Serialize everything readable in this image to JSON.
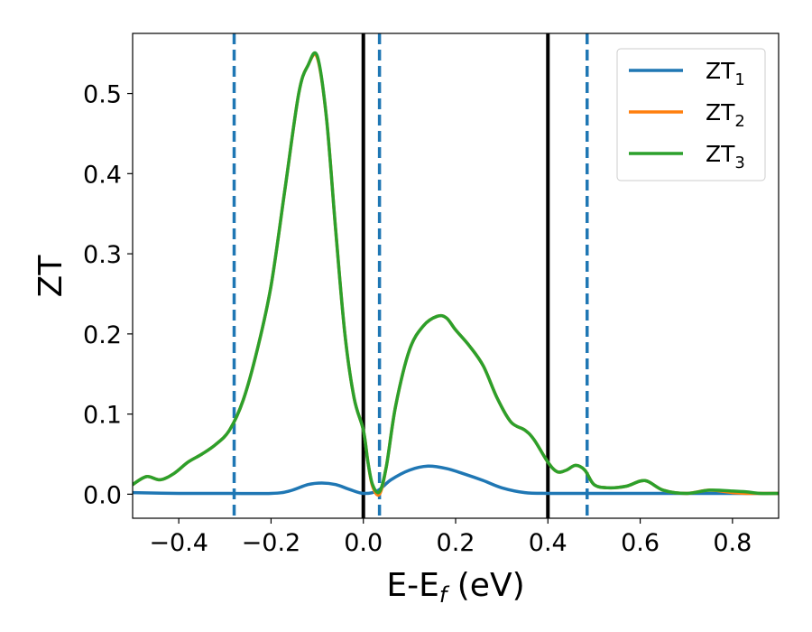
{
  "chart_data": {
    "type": "line",
    "xlabel": "E-E",
    "xlabel_sub": "f",
    "xlabel_unit": " (eV)",
    "ylabel": "ZT",
    "xlim": [
      -0.5,
      0.9
    ],
    "ylim": [
      -0.03,
      0.575
    ],
    "x_ticks": [
      -0.4,
      -0.2,
      0.0,
      0.2,
      0.4,
      0.6,
      0.8
    ],
    "x_tick_labels": [
      "−0.4",
      "−0.2",
      "0.0",
      "0.2",
      "0.4",
      "0.6",
      "0.8"
    ],
    "y_ticks": [
      0.0,
      0.1,
      0.2,
      0.3,
      0.4,
      0.5
    ],
    "y_tick_labels": [
      "0.0",
      "0.1",
      "0.2",
      "0.3",
      "0.4",
      "0.5"
    ],
    "grid": false,
    "legend_position": "top-right",
    "series": [
      {
        "name": "ZT",
        "name_sub": "1",
        "color": "#1f77b4",
        "x": [
          -0.5,
          -0.4,
          -0.3,
          -0.2,
          -0.16,
          -0.12,
          -0.09,
          -0.06,
          -0.03,
          0.0,
          0.03,
          0.06,
          0.1,
          0.14,
          0.18,
          0.22,
          0.26,
          0.3,
          0.35,
          0.4,
          0.45,
          0.5,
          0.55,
          0.6,
          0.7,
          0.8,
          0.9
        ],
        "y": [
          0.002,
          0.001,
          0.001,
          0.001,
          0.004,
          0.012,
          0.014,
          0.012,
          0.006,
          0.001,
          0.004,
          0.018,
          0.03,
          0.035,
          0.032,
          0.025,
          0.017,
          0.008,
          0.002,
          0.001,
          0.001,
          0.001,
          0.001,
          0.001,
          0.001,
          0.001,
          0.001
        ]
      },
      {
        "name": "ZT",
        "name_sub": "2",
        "color": "#ff7f0e",
        "x": [
          -0.5,
          -0.47,
          -0.44,
          -0.41,
          -0.38,
          -0.35,
          -0.32,
          -0.29,
          -0.26,
          -0.23,
          -0.2,
          -0.17,
          -0.14,
          -0.12,
          -0.1,
          -0.08,
          -0.06,
          -0.04,
          -0.02,
          0.0,
          0.01,
          0.02,
          0.035,
          0.05,
          0.07,
          0.1,
          0.13,
          0.16,
          0.18,
          0.2,
          0.23,
          0.26,
          0.29,
          0.32,
          0.35,
          0.37,
          0.4,
          0.42,
          0.44,
          0.46,
          0.48,
          0.5,
          0.53,
          0.57,
          0.61,
          0.65,
          0.7,
          0.75,
          0.8,
          0.83,
          0.86,
          0.9
        ],
        "y": [
          0.012,
          0.022,
          0.018,
          0.026,
          0.04,
          0.05,
          0.062,
          0.08,
          0.118,
          0.18,
          0.26,
          0.38,
          0.5,
          0.535,
          0.545,
          0.47,
          0.33,
          0.2,
          0.12,
          0.08,
          0.04,
          0.01,
          0.0,
          0.035,
          0.11,
          0.18,
          0.21,
          0.222,
          0.22,
          0.205,
          0.185,
          0.16,
          0.12,
          0.09,
          0.08,
          0.068,
          0.04,
          0.028,
          0.03,
          0.036,
          0.03,
          0.012,
          0.008,
          0.01,
          0.017,
          0.005,
          0.001,
          0.005,
          0.002,
          0.001,
          0.001,
          0.001
        ]
      },
      {
        "name": "ZT",
        "name_sub": "3",
        "color": "#2ca02c",
        "x": [
          -0.5,
          -0.47,
          -0.44,
          -0.41,
          -0.38,
          -0.35,
          -0.32,
          -0.29,
          -0.26,
          -0.23,
          -0.2,
          -0.17,
          -0.14,
          -0.12,
          -0.1,
          -0.08,
          -0.06,
          -0.04,
          -0.02,
          0.0,
          0.01,
          0.02,
          0.035,
          0.05,
          0.07,
          0.1,
          0.13,
          0.16,
          0.18,
          0.2,
          0.23,
          0.26,
          0.29,
          0.32,
          0.35,
          0.37,
          0.4,
          0.42,
          0.44,
          0.46,
          0.48,
          0.5,
          0.53,
          0.57,
          0.61,
          0.65,
          0.7,
          0.75,
          0.8,
          0.83,
          0.86,
          0.9
        ],
        "y": [
          0.012,
          0.022,
          0.018,
          0.026,
          0.04,
          0.05,
          0.062,
          0.08,
          0.118,
          0.18,
          0.26,
          0.38,
          0.5,
          0.535,
          0.547,
          0.47,
          0.33,
          0.2,
          0.12,
          0.08,
          0.04,
          0.012,
          0.003,
          0.035,
          0.11,
          0.18,
          0.21,
          0.222,
          0.22,
          0.205,
          0.185,
          0.16,
          0.12,
          0.09,
          0.08,
          0.068,
          0.04,
          0.028,
          0.03,
          0.036,
          0.03,
          0.012,
          0.008,
          0.01,
          0.017,
          0.005,
          0.001,
          0.005,
          0.004,
          0.003,
          0.001,
          0.001
        ]
      }
    ],
    "vlines": [
      {
        "x": -0.28,
        "style": "dashed",
        "color": "#1f77b4"
      },
      {
        "x": 0.0,
        "style": "solid",
        "color": "#000000"
      },
      {
        "x": 0.035,
        "style": "dashed",
        "color": "#1f77b4"
      },
      {
        "x": 0.4,
        "style": "solid",
        "color": "#000000"
      },
      {
        "x": 0.485,
        "style": "dashed",
        "color": "#1f77b4"
      }
    ]
  }
}
